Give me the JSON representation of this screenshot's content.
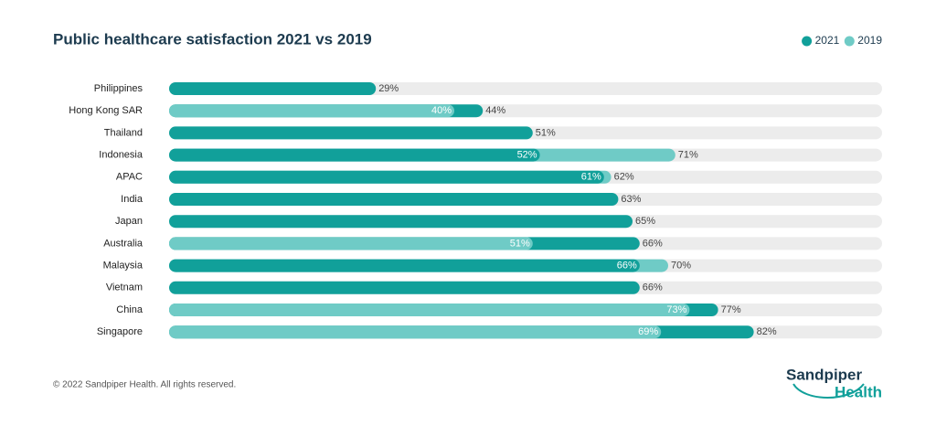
{
  "chart_data": {
    "type": "overlap-bar",
    "title": "Public healthcare satisfaction 2021 vs 2019",
    "categories": [
      "Philippines",
      "Hong Kong SAR",
      "Thailand",
      "Indonesia",
      "APAC",
      "India",
      "Japan",
      "Australia",
      "Malaysia",
      "Vietnam",
      "China",
      "Singapore"
    ],
    "series": [
      {
        "name": "2021",
        "color": "#11a09a",
        "values": [
          29,
          44,
          51,
          52,
          61,
          63,
          65,
          66,
          66,
          66,
          77,
          82
        ],
        "value_labels": [
          "29%",
          "44%",
          "51%",
          "52%",
          "61%",
          "63%",
          "65%",
          "66%",
          "66%",
          "66%",
          "77%",
          "82%"
        ]
      },
      {
        "name": "2019",
        "color": "#6fcbc6",
        "values": [
          null,
          40,
          null,
          71,
          62,
          null,
          null,
          51,
          70,
          null,
          73,
          69
        ],
        "value_labels": [
          null,
          "40%",
          null,
          "71%",
          "62%",
          null,
          null,
          "51%",
          "70%",
          null,
          "73%",
          "69%"
        ]
      }
    ],
    "xlim": [
      0,
      100
    ],
    "track_color": "#ececec",
    "footer": "© 2022 Sandpiper Health. All rights reserved.",
    "logo": [
      "Sandpiper",
      "Health"
    ]
  }
}
